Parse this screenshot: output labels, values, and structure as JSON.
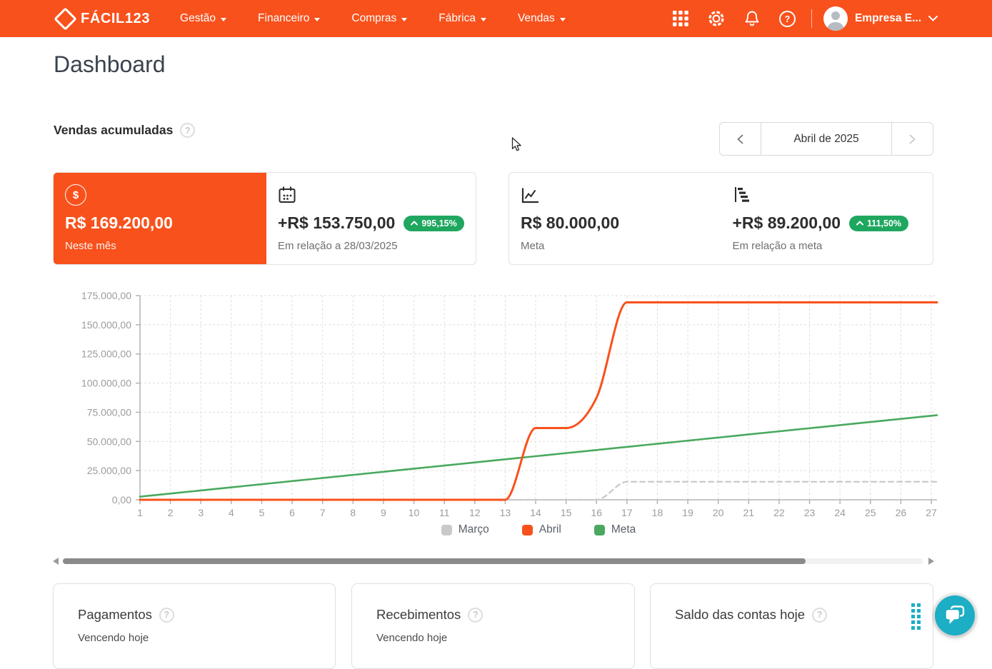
{
  "colors": {
    "accent": "#F8511C",
    "badge_green": "#1FA75F",
    "chat_teal": "#1BAEC5",
    "axis_gray": "#b3b3b3",
    "grid_gray": "#e3ddd7"
  },
  "nav": {
    "logo_text": "FÁCIL123",
    "menus": [
      {
        "label": "Gestão"
      },
      {
        "label": "Financeiro"
      },
      {
        "label": "Compras"
      },
      {
        "label": "Fábrica"
      },
      {
        "label": "Vendas"
      }
    ],
    "account_name": "Empresa E..."
  },
  "page": {
    "title": "Dashboard"
  },
  "sales_section": {
    "title": "Vendas acumuladas",
    "period_label": "Abril de 2025"
  },
  "icons": {
    "help_glyph": "?",
    "dollar_glyph": "$"
  },
  "kpis": {
    "current": {
      "value": "R$ 169.200,00",
      "label": "Neste mês"
    },
    "vs_previous": {
      "value": "+R$ 153.750,00",
      "badge": "995,15%",
      "label": "Em relação a 28/03/2025"
    },
    "goal": {
      "value": "R$ 80.000,00",
      "label": "Meta"
    },
    "vs_goal": {
      "value": "+R$ 89.200,00",
      "badge": "111,50%",
      "label": "Em relação a meta"
    }
  },
  "chart_data": {
    "type": "line",
    "x": [
      1,
      2,
      3,
      4,
      5,
      6,
      7,
      8,
      9,
      10,
      11,
      12,
      13,
      14,
      15,
      16,
      17,
      18,
      19,
      20,
      21,
      22,
      23,
      24,
      25,
      26,
      27
    ],
    "ylim": [
      0,
      175000
    ],
    "ytick_step": 25000,
    "ytick_labels": [
      "0,00",
      "25.000,00",
      "50.000,00",
      "75.000,00",
      "100.000,00",
      "125.000,00",
      "150.000,00",
      "175.000,00"
    ],
    "grid": true,
    "legend_position": "bottom",
    "series": [
      {
        "name": "Março",
        "color": "#C9C9C9",
        "dash": true,
        "values": [
          0,
          0,
          0,
          0,
          0,
          0,
          0,
          0,
          0,
          0,
          0,
          0,
          0,
          0,
          0,
          0,
          15450,
          15450,
          15450,
          15450,
          15450,
          15450,
          15450,
          15450,
          15450,
          15450,
          15450
        ]
      },
      {
        "name": "Abril",
        "color": "#F8511C",
        "dash": false,
        "values": [
          0,
          0,
          0,
          0,
          0,
          0,
          0,
          0,
          0,
          0,
          0,
          0,
          0,
          61500,
          61500,
          87500,
          169200,
          169200,
          169200,
          169200,
          169200,
          169200,
          169200,
          169200,
          169200,
          169200,
          169200
        ]
      },
      {
        "name": "Meta",
        "color": "#4AA95F",
        "dash": false,
        "values": [
          2667,
          5333,
          8000,
          10667,
          13333,
          16000,
          18667,
          21333,
          24000,
          26667,
          29333,
          32000,
          34667,
          37333,
          40000,
          42667,
          45333,
          48000,
          50667,
          53333,
          56000,
          58667,
          61333,
          64000,
          66667,
          69333,
          72000
        ]
      }
    ]
  },
  "bottom_cards": [
    {
      "title": "Pagamentos",
      "subtitle": "Vencendo hoje"
    },
    {
      "title": "Recebimentos",
      "subtitle": "Vencendo hoje"
    },
    {
      "title": "Saldo das contas hoje",
      "subtitle": ""
    }
  ]
}
